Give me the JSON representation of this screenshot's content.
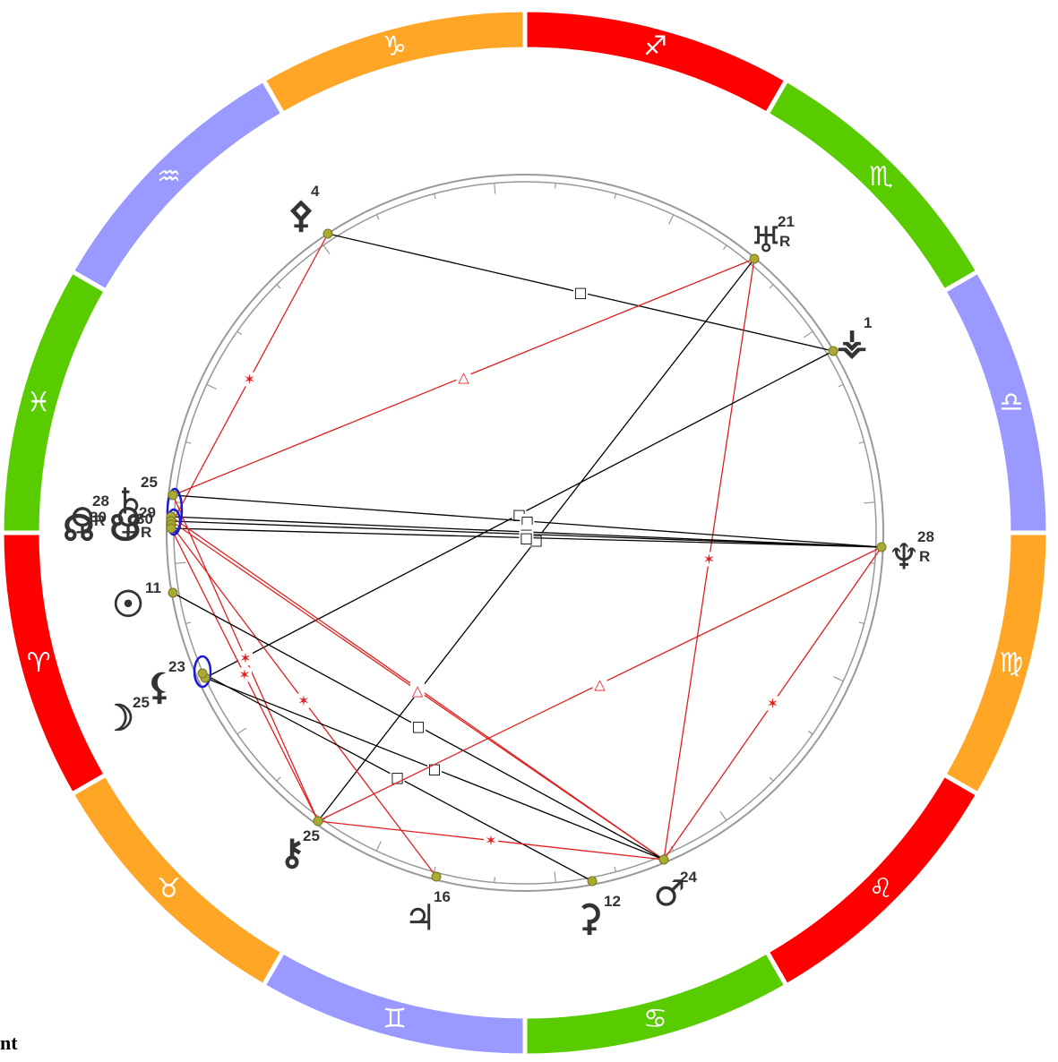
{
  "signs": [
    {
      "name": "aries",
      "glyph": "♈",
      "color": "#ff0000"
    },
    {
      "name": "taurus",
      "glyph": "♉",
      "color": "#ffa626"
    },
    {
      "name": "gemini",
      "glyph": "♊",
      "color": "#9999ff"
    },
    {
      "name": "cancer",
      "glyph": "♋",
      "color": "#59cc00"
    },
    {
      "name": "leo",
      "glyph": "♌",
      "color": "#ff0000"
    },
    {
      "name": "virgo",
      "glyph": "♍",
      "color": "#ffa626"
    },
    {
      "name": "libra",
      "glyph": "♎",
      "color": "#9999ff"
    },
    {
      "name": "scorpio",
      "glyph": "♏",
      "color": "#59cc00"
    },
    {
      "name": "sagittarius",
      "glyph": "♐",
      "color": "#ff0000"
    },
    {
      "name": "capricorn",
      "glyph": "♑",
      "color": "#ffa626"
    },
    {
      "name": "aquarius",
      "glyph": "♒",
      "color": "#9999ff"
    },
    {
      "name": "pisces",
      "glyph": "♓",
      "color": "#59cc00"
    }
  ],
  "planets": [
    {
      "name": "saturn",
      "glyph": "♄",
      "degree": "25",
      "retro": ""
    },
    {
      "name": "venus",
      "glyph": "♀",
      "degree": "28",
      "retro": "R"
    },
    {
      "name": "pluto",
      "glyph": "♀",
      "degree": "29",
      "retro": "R"
    },
    {
      "name": "node-a",
      "glyph": "☊",
      "degree": "30",
      "retro": ""
    },
    {
      "name": "node-b",
      "glyph": "☋",
      "degree": "30",
      "retro": ""
    },
    {
      "name": "sun",
      "glyph": "☉",
      "degree": "11",
      "retro": ""
    },
    {
      "name": "lilith",
      "glyph": "⚸",
      "degree": "23",
      "retro": ""
    },
    {
      "name": "moon",
      "glyph": "☽",
      "degree": "25",
      "retro": ""
    },
    {
      "name": "chiron",
      "glyph": "⚷",
      "degree": "25",
      "retro": ""
    },
    {
      "name": "jupiter",
      "glyph": "♃",
      "degree": "16",
      "retro": ""
    },
    {
      "name": "ceres",
      "glyph": "⚳",
      "degree": "12",
      "retro": ""
    },
    {
      "name": "mars",
      "glyph": "♂",
      "degree": "24",
      "retro": ""
    },
    {
      "name": "neptune",
      "glyph": "♆",
      "degree": "28",
      "retro": "R"
    },
    {
      "name": "vesta",
      "glyph": "⚶",
      "degree": "1",
      "retro": ""
    },
    {
      "name": "uranus",
      "glyph": "♅",
      "degree": "21",
      "retro": "R"
    },
    {
      "name": "pallas",
      "glyph": "⚴",
      "degree": "4",
      "retro": ""
    }
  ],
  "aspects": [
    {
      "kind": "square",
      "glyph": "□",
      "color": "#000000"
    },
    {
      "kind": "trine",
      "glyph": "△",
      "color": "#e02020"
    },
    {
      "kind": "sextile",
      "glyph": "✶",
      "color": "#e02020"
    }
  ],
  "caption": "nt"
}
